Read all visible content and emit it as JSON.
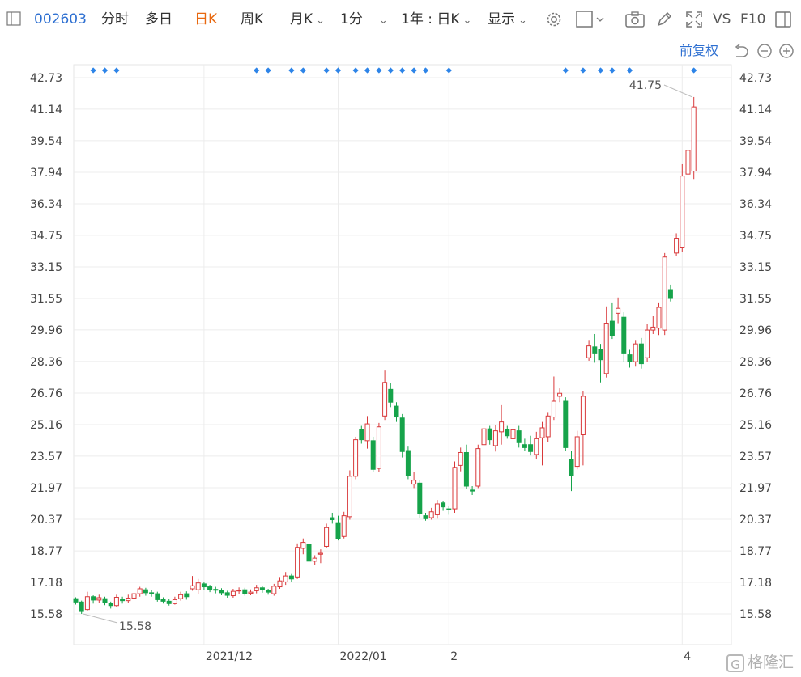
{
  "toolbar": {
    "stock_code": "002603",
    "tabs": [
      {
        "label": "分时",
        "active": false
      },
      {
        "label": "多日",
        "active": false
      },
      {
        "label": "日K",
        "active": true
      },
      {
        "label": "周K",
        "active": false
      },
      {
        "label": "月K",
        "active": false
      }
    ],
    "period_label": "1分",
    "range_label": "1年 : 日K",
    "display_label": "显示",
    "vs_label": "VS",
    "f10_label": "F10",
    "fq_label": "前复权",
    "accent_color": "#e8680f",
    "link_color": "#2d6fd1",
    "icons": [
      "panel-toggle-icon",
      "settings-gear-icon",
      "checkbox-icon",
      "camera-icon",
      "pen-icon",
      "fullscreen-icon",
      "window-icon",
      "undo-icon",
      "zoom-out-icon",
      "zoom-in-icon"
    ]
  },
  "watermark": {
    "text": "格隆汇"
  },
  "chart_data": {
    "type": "candlestick",
    "y_ticks": [
      "42.73",
      "41.14",
      "39.54",
      "37.94",
      "36.34",
      "34.75",
      "33.15",
      "31.55",
      "29.96",
      "28.36",
      "26.76",
      "25.16",
      "23.57",
      "21.97",
      "20.37",
      "18.77",
      "17.18",
      "15.58"
    ],
    "ylim": [
      15.58,
      42.73
    ],
    "x_labels": [
      {
        "label": "2021/12",
        "index": 22
      },
      {
        "label": "2022/01",
        "index": 45
      },
      {
        "label": "2",
        "index": 64
      },
      {
        "label": "4",
        "index": 104
      }
    ],
    "max_annotation": {
      "value": "41.75",
      "index": 106
    },
    "min_annotation": {
      "value": "15.58",
      "index": 1
    },
    "up_color": "#d9383a",
    "down_color": "#16a34a",
    "marker_color": "#2d84e8",
    "marker_indices": [
      3,
      5,
      7,
      31,
      33,
      37,
      39,
      43,
      45,
      48,
      50,
      52,
      54,
      56,
      58,
      60,
      64,
      84,
      87,
      90,
      92,
      95,
      106
    ],
    "candles": [
      [
        16.35,
        16.18,
        16.42,
        16.05
      ],
      [
        16.18,
        15.7,
        16.25,
        15.58
      ],
      [
        15.8,
        16.45,
        16.7,
        15.72
      ],
      [
        16.45,
        16.28,
        16.52,
        16.1
      ],
      [
        16.28,
        16.4,
        16.55,
        16.15
      ],
      [
        16.35,
        16.15,
        16.45,
        16.02
      ],
      [
        16.1,
        16.0,
        16.2,
        15.85
      ],
      [
        16.0,
        16.42,
        16.55,
        15.95
      ],
      [
        16.3,
        16.25,
        16.45,
        16.1
      ],
      [
        16.25,
        16.38,
        16.55,
        16.15
      ],
      [
        16.38,
        16.6,
        16.72,
        16.25
      ],
      [
        16.6,
        16.85,
        16.95,
        16.45
      ],
      [
        16.8,
        16.65,
        16.9,
        16.5
      ],
      [
        16.65,
        16.6,
        16.78,
        16.45
      ],
      [
        16.6,
        16.3,
        16.7,
        16.2
      ],
      [
        16.3,
        16.22,
        16.42,
        16.1
      ],
      [
        16.22,
        16.1,
        16.35,
        16.0
      ],
      [
        16.1,
        16.3,
        16.45,
        16.05
      ],
      [
        16.35,
        16.55,
        16.7,
        16.25
      ],
      [
        16.6,
        16.45,
        16.72,
        16.3
      ],
      [
        16.85,
        17.0,
        17.5,
        16.75
      ],
      [
        16.8,
        17.15,
        17.35,
        16.6
      ],
      [
        17.1,
        16.95,
        17.2,
        16.8
      ],
      [
        16.95,
        16.82,
        17.05,
        16.68
      ],
      [
        16.82,
        16.78,
        16.95,
        16.62
      ],
      [
        16.78,
        16.65,
        16.88,
        16.52
      ],
      [
        16.65,
        16.52,
        16.75,
        16.4
      ],
      [
        16.5,
        16.72,
        16.85,
        16.4
      ],
      [
        16.75,
        16.78,
        16.92,
        16.58
      ],
      [
        16.8,
        16.62,
        16.9,
        16.5
      ],
      [
        16.62,
        16.68,
        16.82,
        16.52
      ],
      [
        16.75,
        16.9,
        17.05,
        16.62
      ],
      [
        16.9,
        16.8,
        17.0,
        16.65
      ],
      [
        16.75,
        16.68,
        16.85,
        16.55
      ],
      [
        16.6,
        16.98,
        17.1,
        16.5
      ],
      [
        16.95,
        17.25,
        17.45,
        16.85
      ],
      [
        17.2,
        17.5,
        17.7,
        17.05
      ],
      [
        17.5,
        17.35,
        17.6,
        17.2
      ],
      [
        17.45,
        18.95,
        19.15,
        17.35
      ],
      [
        18.9,
        19.2,
        19.4,
        18.6
      ],
      [
        19.1,
        18.25,
        19.25,
        18.1
      ],
      [
        18.25,
        18.4,
        18.55,
        18.05
      ],
      [
        18.6,
        18.65,
        18.85,
        18.15
      ],
      [
        19.0,
        19.95,
        20.15,
        18.9
      ],
      [
        20.45,
        20.35,
        20.7,
        20.15
      ],
      [
        20.2,
        19.4,
        20.55,
        19.3
      ],
      [
        19.5,
        20.55,
        20.75,
        19.4
      ],
      [
        20.5,
        22.55,
        22.85,
        20.35
      ],
      [
        22.55,
        24.4,
        24.55,
        22.4
      ],
      [
        24.9,
        24.4,
        25.1,
        24.2
      ],
      [
        24.35,
        25.2,
        25.6,
        23.95
      ],
      [
        24.35,
        22.9,
        24.55,
        22.75
      ],
      [
        22.95,
        25.05,
        25.25,
        22.75
      ],
      [
        25.6,
        27.3,
        27.9,
        25.4
      ],
      [
        26.95,
        26.3,
        27.25,
        26.05
      ],
      [
        26.1,
        25.55,
        26.3,
        25.3
      ],
      [
        25.5,
        23.8,
        25.7,
        23.5
      ],
      [
        23.85,
        22.6,
        24.05,
        22.4
      ],
      [
        22.15,
        22.35,
        22.75,
        21.95
      ],
      [
        22.2,
        20.65,
        22.35,
        20.45
      ],
      [
        20.55,
        20.4,
        20.7,
        20.3
      ],
      [
        20.45,
        20.75,
        20.95,
        20.35
      ],
      [
        20.6,
        21.15,
        21.35,
        20.4
      ],
      [
        21.2,
        21.0,
        21.3,
        20.8
      ],
      [
        20.9,
        20.85,
        21.05,
        20.6
      ],
      [
        20.9,
        23.0,
        23.3,
        20.7
      ],
      [
        23.1,
        23.75,
        24.0,
        22.8
      ],
      [
        23.75,
        22.05,
        24.15,
        21.9
      ],
      [
        21.85,
        21.8,
        22.05,
        21.6
      ],
      [
        22.05,
        23.95,
        24.15,
        21.95
      ],
      [
        24.15,
        24.95,
        25.1,
        23.85
      ],
      [
        24.95,
        24.4,
        25.1,
        24.15
      ],
      [
        24.1,
        24.85,
        25.15,
        23.8
      ],
      [
        24.8,
        25.3,
        26.15,
        24.15
      ],
      [
        24.9,
        24.6,
        25.1,
        24.45
      ],
      [
        24.45,
        24.9,
        25.35,
        24.1
      ],
      [
        24.85,
        24.25,
        25.1,
        24.0
      ],
      [
        24.15,
        24.0,
        24.45,
        23.85
      ],
      [
        24.15,
        23.8,
        24.6,
        23.6
      ],
      [
        23.65,
        24.45,
        24.8,
        23.4
      ],
      [
        24.5,
        25.0,
        25.3,
        23.1
      ],
      [
        24.55,
        25.6,
        25.8,
        24.3
      ],
      [
        25.55,
        26.35,
        27.6,
        25.4
      ],
      [
        26.6,
        26.75,
        27.0,
        26.3
      ],
      [
        26.35,
        24.0,
        26.55,
        23.85
      ],
      [
        23.4,
        22.6,
        23.85,
        21.8
      ],
      [
        23.05,
        24.55,
        24.85,
        22.9
      ],
      [
        24.65,
        26.6,
        26.85,
        23.1
      ],
      [
        28.55,
        29.15,
        29.45,
        28.4
      ],
      [
        29.1,
        28.75,
        29.75,
        28.3
      ],
      [
        28.95,
        28.45,
        29.25,
        27.3
      ],
      [
        27.75,
        30.3,
        31.15,
        27.55
      ],
      [
        30.4,
        29.65,
        31.35,
        29.5
      ],
      [
        30.8,
        31.05,
        31.6,
        30.3
      ],
      [
        30.6,
        28.75,
        30.85,
        28.35
      ],
      [
        28.7,
        28.35,
        28.95,
        28.05
      ],
      [
        28.35,
        29.25,
        29.45,
        28.1
      ],
      [
        29.25,
        28.25,
        29.55,
        28.0
      ],
      [
        28.55,
        29.95,
        30.25,
        28.35
      ],
      [
        29.95,
        30.1,
        30.65,
        29.75
      ],
      [
        30.05,
        31.1,
        31.35,
        29.7
      ],
      [
        29.95,
        33.65,
        33.85,
        29.7
      ],
      [
        32.0,
        31.55,
        32.25,
        31.4
      ],
      [
        33.85,
        34.6,
        34.85,
        33.7
      ],
      [
        34.15,
        37.75,
        38.35,
        33.9
      ],
      [
        37.85,
        39.05,
        40.25,
        35.6
      ],
      [
        38.0,
        41.25,
        41.75,
        37.6
      ]
    ]
  }
}
